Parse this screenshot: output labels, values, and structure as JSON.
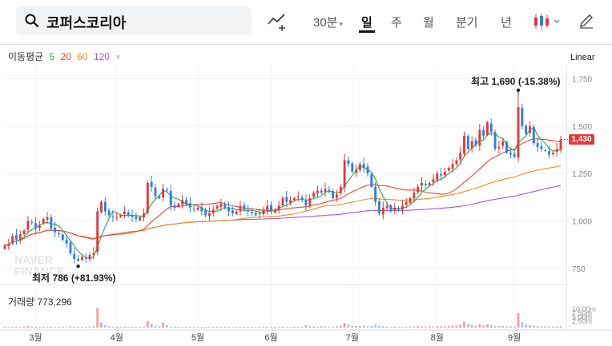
{
  "search": {
    "query": "코퍼스코리아"
  },
  "period_tabs": [
    {
      "label": "30분",
      "dropdown": true
    },
    {
      "label": "일",
      "active": true
    },
    {
      "label": "주"
    },
    {
      "label": "월"
    },
    {
      "label": "분기"
    },
    {
      "label": "년"
    }
  ],
  "ma_legend": {
    "label": "이동평균",
    "periods": [
      {
        "value": "5",
        "color": "#2ea84b"
      },
      {
        "value": "20",
        "color": "#e8463c"
      },
      {
        "value": "60",
        "color": "#f08a24"
      },
      {
        "value": "120",
        "color": "#a35bd0"
      }
    ],
    "close": "×"
  },
  "scale": "Linear",
  "volume_legend": {
    "label": "거래량",
    "value": "773,296"
  },
  "annotations": {
    "high": {
      "prefix": "최고",
      "value": "1,690",
      "change": "(-15.38%)"
    },
    "low": {
      "prefix": "최저",
      "value": "786",
      "change": "(+81.93%)"
    }
  },
  "current_price": "1,430",
  "watermark": [
    "NAVER",
    "FINANCE"
  ],
  "colors": {
    "up": "#e03a3e",
    "down": "#2f7fe0",
    "ma5": "#2ea84b",
    "ma20": "#e8463c",
    "ma60": "#f08a24",
    "ma120": "#a35bd0"
  },
  "chart_data": {
    "type": "candlestick",
    "title": "코퍼스코리아 일봉",
    "y_ticks": [
      750,
      1000,
      1250,
      1500,
      1750
    ],
    "y_tick_labels": [
      "750",
      "1,000",
      "1,250",
      "1,500",
      "1,750"
    ],
    "ylim": [
      690,
      1820
    ],
    "x_tick_labels": [
      "3월",
      "4월",
      "5월",
      "6월",
      "7월",
      "8월",
      "9월"
    ],
    "x_tick_index": [
      8,
      29,
      50,
      69,
      90,
      112,
      132
    ],
    "volume_ticks": [
      "10.00m",
      "7.50m",
      "5.00m",
      "2.50m"
    ],
    "volume_max": 10,
    "high": {
      "value": 1690,
      "index": 133
    },
    "low": {
      "value": 786,
      "index": 19
    },
    "close_series": [
      870,
      880,
      920,
      900,
      930,
      950,
      1000,
      990,
      960,
      980,
      1010,
      1020,
      960,
      940,
      930,
      900,
      880,
      830,
      800,
      790,
      810,
      800,
      820,
      830,
      1050,
      1100,
      1050,
      1030,
      1020,
      1020,
      1030,
      1050,
      1030,
      1020,
      1010,
      1020,
      1040,
      1200,
      1180,
      1130,
      1120,
      1170,
      1160,
      1080,
      1070,
      1090,
      1110,
      1090,
      1070,
      1060,
      1070,
      1050,
      1030,
      1040,
      1060,
      1080,
      1090,
      1070,
      1050,
      1040,
      1050,
      1080,
      1060,
      1050,
      1040,
      1030,
      1040,
      1060,
      1080,
      1050,
      1060,
      1080,
      1120,
      1100,
      1110,
      1120,
      1130,
      1110,
      1080,
      1120,
      1150,
      1160,
      1150,
      1170,
      1160,
      1120,
      1140,
      1180,
      1320,
      1300,
      1260,
      1270,
      1300,
      1280,
      1250,
      1180,
      1100,
      1040,
      1070,
      1080,
      1050,
      1070,
      1060,
      1080,
      1100,
      1120,
      1150,
      1180,
      1200,
      1190,
      1200,
      1220,
      1250,
      1240,
      1260,
      1280,
      1300,
      1320,
      1360,
      1450,
      1380,
      1420,
      1400,
      1480,
      1450,
      1520,
      1470,
      1380,
      1390,
      1420,
      1360,
      1350,
      1340,
      1600,
      1500,
      1460,
      1500,
      1410,
      1390,
      1380,
      1370,
      1350,
      1360,
      1380,
      1430
    ],
    "volume_series": [
      0.4,
      0.3,
      0.5,
      0.4,
      0.3,
      0.6,
      0.8,
      0.5,
      0.4,
      0.3,
      0.5,
      0.4,
      0.4,
      0.3,
      0.4,
      0.5,
      0.3,
      0.6,
      0.5,
      0.4,
      0.3,
      0.3,
      0.5,
      0.6,
      9.5,
      2.5,
      1.2,
      0.8,
      0.5,
      0.4,
      0.4,
      0.5,
      0.4,
      0.3,
      0.3,
      0.4,
      0.5,
      3.2,
      1.8,
      0.8,
      0.6,
      2.5,
      1.2,
      0.5,
      0.5,
      0.4,
      0.3,
      0.4,
      0.3,
      0.3,
      0.3,
      0.4,
      0.4,
      0.3,
      0.3,
      0.4,
      0.3,
      0.5,
      0.4,
      0.3,
      0.3,
      0.4,
      0.3,
      0.3,
      0.3,
      0.3,
      0.4,
      0.5,
      0.4,
      0.3,
      0.3,
      0.3,
      0.5,
      0.4,
      0.3,
      0.4,
      0.4,
      0.5,
      1.2,
      0.6,
      0.5,
      0.4,
      0.8,
      0.6,
      0.4,
      0.5,
      0.6,
      0.9,
      2.2,
      1.5,
      0.9,
      0.8,
      0.7,
      1.0,
      0.6,
      0.8,
      1.5,
      0.9,
      0.6,
      0.5,
      0.4,
      0.5,
      0.4,
      0.4,
      0.5,
      0.6,
      0.5,
      0.7,
      0.6,
      0.5,
      0.6,
      0.5,
      0.8,
      0.6,
      0.7,
      0.8,
      0.9,
      1.0,
      1.5,
      2.8,
      1.8,
      1.4,
      0.9,
      1.6,
      1.2,
      1.5,
      1.3,
      0.9,
      0.7,
      0.8,
      0.6,
      0.6,
      0.5,
      7.0,
      2.6,
      1.5,
      1.2,
      1.0,
      0.8,
      0.6,
      0.6,
      0.5,
      0.5,
      0.6,
      0.7
    ]
  }
}
